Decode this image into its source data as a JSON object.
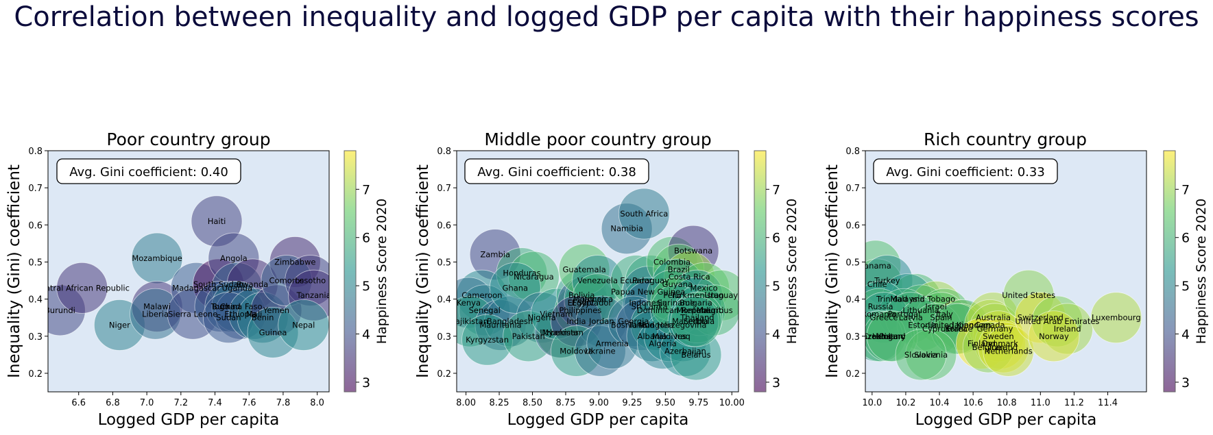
{
  "title": "Correlation between inequality and logged GDP per capita with their happiness scores",
  "chart_data": [
    {
      "type": "scatter",
      "title": "Poor country group",
      "xlabel": "Logged GDP per capita",
      "ylabel": "Inequality (Gini) coefficient",
      "annotation": "Avg. Gini coefficient: 0.40",
      "colorbar_label": "Happiness Score 2020",
      "colorbar_ticks": [
        3,
        4,
        5,
        6,
        7
      ],
      "color_range": [
        2.8,
        7.8
      ],
      "colormap": "viridis",
      "xlim": [
        6.42,
        8.07
      ],
      "ylim": [
        0.15,
        0.8
      ],
      "xticks": [
        6.6,
        6.8,
        7.0,
        7.2,
        7.4,
        7.6,
        7.8,
        8.0
      ],
      "yticks": [
        0.2,
        0.3,
        0.4,
        0.5,
        0.6,
        0.7,
        0.8
      ],
      "points": [
        {
          "label": "Burundi",
          "x": 6.49,
          "y": 0.37,
          "score": 3.8
        },
        {
          "label": "Central African Republic",
          "x": 6.62,
          "y": 0.43,
          "score": 3.5
        },
        {
          "label": "Niger",
          "x": 6.84,
          "y": 0.33,
          "score": 4.9
        },
        {
          "label": "Mozambique",
          "x": 7.06,
          "y": 0.51,
          "score": 4.8
        },
        {
          "label": "Malawi",
          "x": 7.06,
          "y": 0.38,
          "score": 3.5
        },
        {
          "label": "Liberia",
          "x": 7.05,
          "y": 0.36,
          "score": 4.6
        },
        {
          "label": "Haiti",
          "x": 7.41,
          "y": 0.61,
          "score": 3.7
        },
        {
          "label": "Madagascar",
          "x": 7.29,
          "y": 0.43,
          "score": 4.2
        },
        {
          "label": "South Sudan",
          "x": 7.42,
          "y": 0.44,
          "score": 2.8
        },
        {
          "label": "Sierra Leone",
          "x": 7.27,
          "y": 0.36,
          "score": 3.9
        },
        {
          "label": "Angola",
          "x": 7.51,
          "y": 0.51,
          "score": 3.8
        },
        {
          "label": "Uganda",
          "x": 7.53,
          "y": 0.43,
          "score": 4.4
        },
        {
          "label": "Rwanda",
          "x": 7.62,
          "y": 0.44,
          "score": 3.3
        },
        {
          "label": "Togo",
          "x": 7.43,
          "y": 0.38,
          "score": 4.2
        },
        {
          "label": "Chad",
          "x": 7.49,
          "y": 0.38,
          "score": 4.4
        },
        {
          "label": "Burkina Faso",
          "x": 7.53,
          "y": 0.38,
          "score": 4.7
        },
        {
          "label": "Ethiopia",
          "x": 7.55,
          "y": 0.36,
          "score": 4.2
        },
        {
          "label": "Sudan",
          "x": 7.48,
          "y": 0.35,
          "score": 4.1
        },
        {
          "label": "Mali",
          "x": 7.63,
          "y": 0.36,
          "score": 4.7
        },
        {
          "label": "Benin",
          "x": 7.68,
          "y": 0.35,
          "score": 4.9
        },
        {
          "label": "Yemen",
          "x": 7.76,
          "y": 0.37,
          "score": 3.5
        },
        {
          "label": "Guinea",
          "x": 7.74,
          "y": 0.31,
          "score": 5.0
        },
        {
          "label": "Zimbabwe",
          "x": 7.87,
          "y": 0.5,
          "score": 3.3
        },
        {
          "label": "Comoros",
          "x": 7.82,
          "y": 0.45,
          "score": 4.3
        },
        {
          "label": "Lesotho",
          "x": 7.96,
          "y": 0.45,
          "score": 3.7
        },
        {
          "label": "Tanzania",
          "x": 7.98,
          "y": 0.41,
          "score": 3.5
        },
        {
          "label": "Nepal",
          "x": 7.92,
          "y": 0.33,
          "score": 5.1
        }
      ]
    },
    {
      "type": "scatter",
      "title": "Middle poor country group",
      "xlabel": "Logged GDP per capita",
      "ylabel": "Inequality (Gini) coefficient",
      "annotation": "Avg. Gini coefficient: 0.38",
      "colorbar_label": "Happiness Score 2020",
      "colorbar_ticks": [
        3,
        4,
        5,
        6,
        7
      ],
      "color_range": [
        2.8,
        7.8
      ],
      "colormap": "viridis",
      "xlim": [
        7.93,
        10.05
      ],
      "ylim": [
        0.15,
        0.8
      ],
      "xticks": [
        8.0,
        8.25,
        8.5,
        8.75,
        9.0,
        9.25,
        9.5,
        9.75,
        10.0
      ],
      "yticks": [
        0.2,
        0.3,
        0.4,
        0.5,
        0.6,
        0.7,
        0.8
      ],
      "points": [
        {
          "label": "Zambia",
          "x": 8.22,
          "y": 0.52,
          "score": 3.8
        },
        {
          "label": "Cameroon",
          "x": 8.12,
          "y": 0.41,
          "score": 5.1
        },
        {
          "label": "Kenya",
          "x": 8.02,
          "y": 0.39,
          "score": 4.6
        },
        {
          "label": "Senegal",
          "x": 8.14,
          "y": 0.37,
          "score": 4.9
        },
        {
          "label": "Tajikistan",
          "x": 8.03,
          "y": 0.34,
          "score": 5.6
        },
        {
          "label": "Mauritania",
          "x": 8.26,
          "y": 0.33,
          "score": 4.4
        },
        {
          "label": "Bangladesh",
          "x": 8.33,
          "y": 0.34,
          "score": 4.8
        },
        {
          "label": "Kyrgyzstan",
          "x": 8.16,
          "y": 0.29,
          "score": 5.5
        },
        {
          "label": "Honduras",
          "x": 8.42,
          "y": 0.47,
          "score": 5.9
        },
        {
          "label": "Nicaragua",
          "x": 8.51,
          "y": 0.46,
          "score": 6.1
        },
        {
          "label": "Ghana",
          "x": 8.37,
          "y": 0.43,
          "score": 5.1
        },
        {
          "label": "Nigeria",
          "x": 8.57,
          "y": 0.35,
          "score": 4.7
        },
        {
          "label": "Pakistan",
          "x": 8.47,
          "y": 0.3,
          "score": 5.7
        },
        {
          "label": "Uzbekistan",
          "x": 8.72,
          "y": 0.31,
          "score": 6.3
        },
        {
          "label": "Myanmar",
          "x": 8.71,
          "y": 0.31,
          "score": 4.3
        },
        {
          "label": "Vietnam",
          "x": 8.68,
          "y": 0.36,
          "score": 5.4
        },
        {
          "label": "Philippines",
          "x": 8.86,
          "y": 0.37,
          "score": 6.0
        },
        {
          "label": "Bolivia",
          "x": 8.87,
          "y": 0.41,
          "score": 5.7
        },
        {
          "label": "Egypt",
          "x": 8.88,
          "y": 0.39,
          "score": 4.2
        },
        {
          "label": "El Salvador",
          "x": 8.93,
          "y": 0.39,
          "score": 6.3
        },
        {
          "label": "Morocco",
          "x": 8.93,
          "y": 0.4,
          "score": 5.1
        },
        {
          "label": "Guatemala",
          "x": 8.89,
          "y": 0.48,
          "score": 6.4
        },
        {
          "label": "Venezuela",
          "x": 8.99,
          "y": 0.45,
          "score": 5.1
        },
        {
          "label": "Jamaica",
          "x": 8.99,
          "y": 0.4,
          "score": 5.9
        },
        {
          "label": "India",
          "x": 8.83,
          "y": 0.34,
          "score": 3.6
        },
        {
          "label": "Jordan",
          "x": 9.02,
          "y": 0.34,
          "score": 4.6
        },
        {
          "label": "Moldova",
          "x": 8.83,
          "y": 0.26,
          "score": 5.6
        },
        {
          "label": "Ukraine",
          "x": 9.01,
          "y": 0.26,
          "score": 4.6
        },
        {
          "label": "Armenia",
          "x": 9.1,
          "y": 0.28,
          "score": 4.7
        },
        {
          "label": "Namibia",
          "x": 9.21,
          "y": 0.59,
          "score": 4.6
        },
        {
          "label": "South Africa",
          "x": 9.34,
          "y": 0.63,
          "score": 4.8
        },
        {
          "label": "Ecuador",
          "x": 9.28,
          "y": 0.45,
          "score": 5.9
        },
        {
          "label": "Paraguay",
          "x": 9.39,
          "y": 0.45,
          "score": 5.7
        },
        {
          "label": "Papua New Guinea",
          "x": 9.37,
          "y": 0.42,
          "score": 4.8
        },
        {
          "label": "Indonesia",
          "x": 9.37,
          "y": 0.39,
          "score": 5.3
        },
        {
          "label": "Sri Lanka",
          "x": 9.38,
          "y": 0.38,
          "score": 4.3
        },
        {
          "label": "Georgia",
          "x": 9.26,
          "y": 0.34,
          "score": 4.7
        },
        {
          "label": "Bosnia and Herzegovina",
          "x": 9.45,
          "y": 0.33,
          "score": 5.7
        },
        {
          "label": "Tunisia",
          "x": 9.32,
          "y": 0.33,
          "score": 4.4
        },
        {
          "label": "Mongolia",
          "x": 9.43,
          "y": 0.33,
          "score": 5.5
        },
        {
          "label": "Albania",
          "x": 9.4,
          "y": 0.3,
          "score": 4.9
        },
        {
          "label": "Algeria",
          "x": 9.48,
          "y": 0.28,
          "score": 5.0
        },
        {
          "label": "Maldives",
          "x": 9.53,
          "y": 0.3,
          "score": 5.2
        },
        {
          "label": "Iraq",
          "x": 9.63,
          "y": 0.3,
          "score": 4.8
        },
        {
          "label": "Azerbaijan",
          "x": 9.65,
          "y": 0.26,
          "score": 5.2
        },
        {
          "label": "Belarus",
          "x": 9.73,
          "y": 0.25,
          "score": 5.5
        },
        {
          "label": "Colombia",
          "x": 9.55,
          "y": 0.5,
          "score": 6.2
        },
        {
          "label": "Botswana",
          "x": 9.71,
          "y": 0.53,
          "score": 3.5
        },
        {
          "label": "Brazil",
          "x": 9.6,
          "y": 0.48,
          "score": 6.4
        },
        {
          "label": "Costa Rica",
          "x": 9.68,
          "y": 0.46,
          "score": 7.1
        },
        {
          "label": "Guyana",
          "x": 9.59,
          "y": 0.44,
          "score": 5.3
        },
        {
          "label": "Mexico",
          "x": 9.79,
          "y": 0.43,
          "score": 6.5
        },
        {
          "label": "Peru",
          "x": 9.55,
          "y": 0.41,
          "score": 5.8
        },
        {
          "label": "Turkmenistan",
          "x": 9.74,
          "y": 0.41,
          "score": 5.1
        },
        {
          "label": "Uruguay",
          "x": 9.92,
          "y": 0.41,
          "score": 6.4
        },
        {
          "label": "Suriname",
          "x": 9.58,
          "y": 0.39,
          "score": 6.3
        },
        {
          "label": "Bulgaria",
          "x": 9.73,
          "y": 0.39,
          "score": 5.1
        },
        {
          "label": "Dominican Republic",
          "x": 9.58,
          "y": 0.37,
          "score": 5.7
        },
        {
          "label": "Montenegro",
          "x": 9.76,
          "y": 0.37,
          "score": 5.5
        },
        {
          "label": "Mauritius",
          "x": 9.87,
          "y": 0.37,
          "score": 6.1
        },
        {
          "label": "Thailand",
          "x": 9.74,
          "y": 0.35,
          "score": 5.9
        },
        {
          "label": "Macedonia",
          "x": 9.71,
          "y": 0.34,
          "score": 5.2
        },
        {
          "label": "Serbia",
          "x": 9.73,
          "y": 0.34,
          "score": 5.8
        }
      ]
    },
    {
      "type": "scatter",
      "title": "Rich country group",
      "xlabel": "Logged GDP per capita",
      "ylabel": "Inequality (Gini) coefficient",
      "annotation": "Avg. Gini coefficient: 0.33",
      "colorbar_label": "Happiness Score 2020",
      "colorbar_ticks": [
        3,
        4,
        5,
        6,
        7
      ],
      "color_range": [
        2.8,
        7.8
      ],
      "colormap": "viridis",
      "xlim": [
        9.96,
        11.63
      ],
      "ylim": [
        0.15,
        0.8
      ],
      "xticks": [
        10.0,
        10.2,
        10.4,
        10.6,
        10.8,
        11.0,
        11.2,
        11.4
      ],
      "yticks": [
        0.2,
        0.3,
        0.4,
        0.5,
        0.6,
        0.7,
        0.8
      ],
      "points": [
        {
          "label": "Panama",
          "x": 10.02,
          "y": 0.49,
          "score": 6.3
        },
        {
          "label": "Chile",
          "x": 10.03,
          "y": 0.44,
          "score": 6.2
        },
        {
          "label": "Turkey",
          "x": 10.09,
          "y": 0.45,
          "score": 5.1
        },
        {
          "label": "Trinidad and Tobago",
          "x": 10.26,
          "y": 0.4,
          "score": 6.2
        },
        {
          "label": "Malaysia",
          "x": 10.21,
          "y": 0.4,
          "score": 5.4
        },
        {
          "label": "Russia",
          "x": 10.05,
          "y": 0.38,
          "score": 5.5
        },
        {
          "label": "Israel",
          "x": 10.38,
          "y": 0.38,
          "score": 7.1
        },
        {
          "label": "Lithuania",
          "x": 10.29,
          "y": 0.37,
          "score": 6.2
        },
        {
          "label": "Romania",
          "x": 10.04,
          "y": 0.36,
          "score": 6.1
        },
        {
          "label": "Portugal",
          "x": 10.19,
          "y": 0.36,
          "score": 5.9
        },
        {
          "label": "Greece",
          "x": 10.07,
          "y": 0.35,
          "score": 5.5
        },
        {
          "label": "Italy",
          "x": 10.43,
          "y": 0.36,
          "score": 6.4
        },
        {
          "label": "Spain",
          "x": 10.41,
          "y": 0.35,
          "score": 6.4
        },
        {
          "label": "Latvia",
          "x": 10.23,
          "y": 0.35,
          "score": 5.9
        },
        {
          "label": "Estonia",
          "x": 10.3,
          "y": 0.33,
          "score": 6.0
        },
        {
          "label": "United Kingdom",
          "x": 10.52,
          "y": 0.33,
          "score": 7.2
        },
        {
          "label": "Japan",
          "x": 10.54,
          "y": 0.33,
          "score": 5.9
        },
        {
          "label": "Cyprus",
          "x": 10.38,
          "y": 0.32,
          "score": 6.2
        },
        {
          "label": "France",
          "x": 10.52,
          "y": 0.32,
          "score": 6.7
        },
        {
          "label": "Korea",
          "x": 10.5,
          "y": 0.32,
          "score": 5.9
        },
        {
          "label": "Australia",
          "x": 10.72,
          "y": 0.35,
          "score": 7.2
        },
        {
          "label": "Canada",
          "x": 10.7,
          "y": 0.33,
          "score": 7.2
        },
        {
          "label": "Germany",
          "x": 10.73,
          "y": 0.32,
          "score": 7.1
        },
        {
          "label": "Croatia",
          "x": 10.03,
          "y": 0.3,
          "score": 5.5
        },
        {
          "label": "Kazakhstan",
          "x": 10.05,
          "y": 0.3,
          "score": 6.1
        },
        {
          "label": "Hungary",
          "x": 10.1,
          "y": 0.3,
          "score": 6.0
        },
        {
          "label": "Poland",
          "x": 10.12,
          "y": 0.3,
          "score": 6.2
        },
        {
          "label": "Sweden",
          "x": 10.75,
          "y": 0.3,
          "score": 7.4
        },
        {
          "label": "Finland",
          "x": 10.65,
          "y": 0.28,
          "score": 7.8
        },
        {
          "label": "Denmark",
          "x": 10.76,
          "y": 0.28,
          "score": 7.6
        },
        {
          "label": "Belgium",
          "x": 10.69,
          "y": 0.27,
          "score": 6.9
        },
        {
          "label": "Iceland",
          "x": 10.78,
          "y": 0.27,
          "score": 7.5
        },
        {
          "label": "Netherlands",
          "x": 10.81,
          "y": 0.26,
          "score": 7.4
        },
        {
          "label": "Slovenia",
          "x": 10.35,
          "y": 0.25,
          "score": 6.4
        },
        {
          "label": "Slovakia",
          "x": 10.29,
          "y": 0.25,
          "score": 6.3
        },
        {
          "label": "United States",
          "x": 10.93,
          "y": 0.41,
          "score": 6.9
        },
        {
          "label": "Switzerland",
          "x": 11.0,
          "y": 0.35,
          "score": 7.6
        },
        {
          "label": "United Arab Emirates",
          "x": 11.1,
          "y": 0.34,
          "score": 6.8
        },
        {
          "label": "Ireland",
          "x": 11.16,
          "y": 0.32,
          "score": 7.1
        },
        {
          "label": "Norway",
          "x": 11.08,
          "y": 0.3,
          "score": 7.5
        },
        {
          "label": "Luxembourg",
          "x": 11.45,
          "y": 0.35,
          "score": 7.2
        }
      ]
    }
  ]
}
